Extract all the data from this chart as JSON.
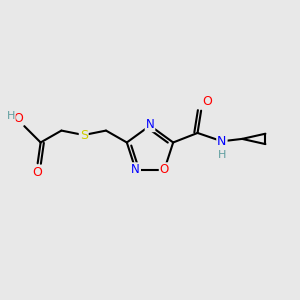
{
  "bg_color": "#e8e8e8",
  "bond_color": "#000000",
  "atom_colors": {
    "O": "#ff0000",
    "N": "#0000ff",
    "S": "#cccc00",
    "H": "#5f9ea0",
    "C": "#000000"
  },
  "figsize": [
    3.0,
    3.0
  ],
  "dpi": 100
}
